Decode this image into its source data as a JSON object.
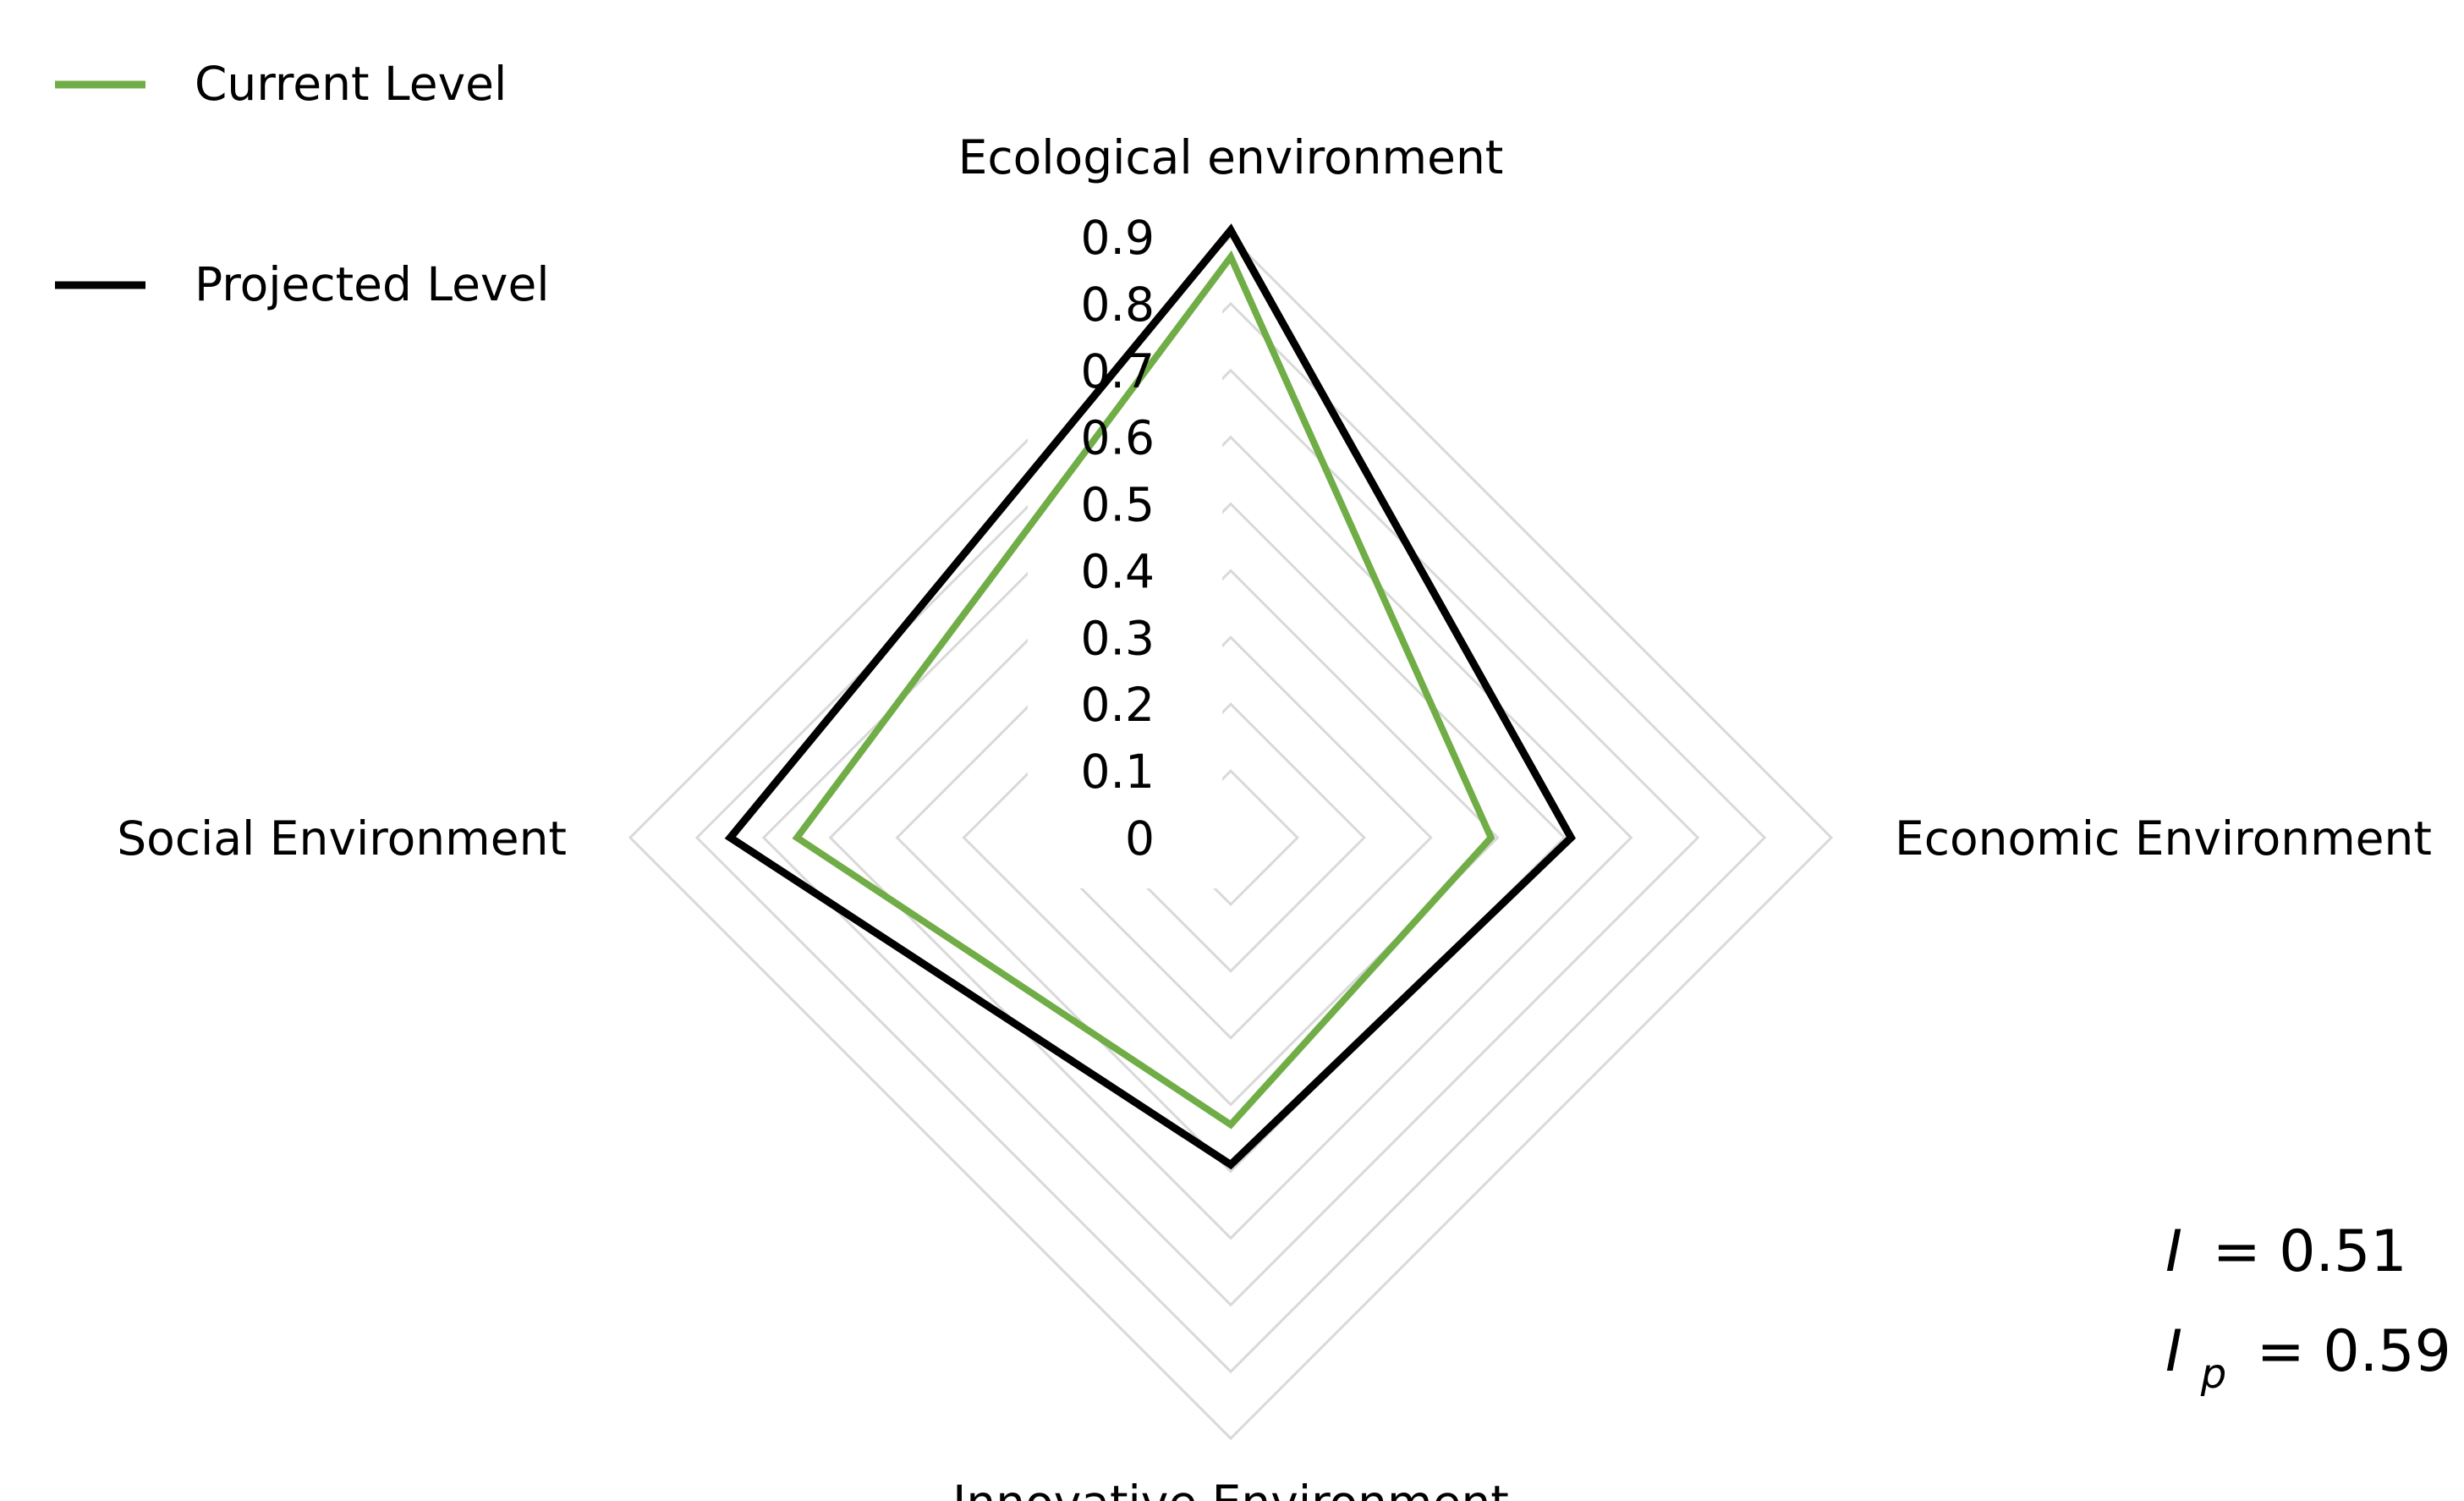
{
  "chart_data": {
    "type": "radar",
    "axes": [
      "Ecological environment",
      "Economic Environment",
      "Innovative Environment",
      "Social Environment"
    ],
    "r_ticks": [
      "0",
      "0.1",
      "0.2",
      "0.3",
      "0.4",
      "0.5",
      "0.6",
      "0.7",
      "0.8",
      "0.9"
    ],
    "r_range": [
      0,
      0.9
    ],
    "grid": true,
    "legend_position": "top-left",
    "series": [
      {
        "name": "Current Level",
        "color": "#70ad47",
        "values": [
          0.87,
          0.39,
          0.43,
          0.65
        ]
      },
      {
        "name": "Projected Level",
        "color": "#000000",
        "values": [
          0.91,
          0.51,
          0.49,
          0.75
        ]
      }
    ],
    "annotations": {
      "i_symbol": "I",
      "i_value": "= 0.51",
      "ip_symbol": "I",
      "ip_subscript": "p",
      "ip_value": "= 0.59"
    }
  }
}
